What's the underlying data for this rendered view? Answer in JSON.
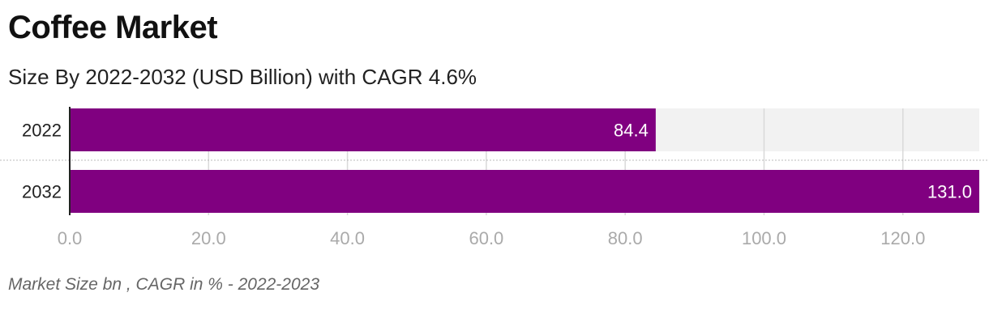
{
  "header": {
    "title": "Coffee Market",
    "subtitle": "Size By 2022-2032 (USD Billion) with CAGR 4.6%"
  },
  "footer": {
    "caption": "Market Size bn , CAGR in % - 2022-2023"
  },
  "colors": {
    "bar": "#800080",
    "track": "#f2f2f2",
    "grid": "#d9d9d9",
    "value_text": "#ffffff"
  },
  "chart_data": {
    "type": "bar",
    "orientation": "horizontal",
    "categories": [
      "2022",
      "2032"
    ],
    "values": [
      84.4,
      131.0
    ],
    "value_labels": [
      "84.4",
      "131.0"
    ],
    "title": "Coffee Market",
    "subtitle": "Size By 2022-2032 (USD Billion) with CAGR 4.6%",
    "xlim": [
      0,
      131
    ],
    "xticks": [
      0,
      20,
      40,
      60,
      80,
      100,
      120
    ],
    "xtick_labels": [
      "0.0",
      "20.0",
      "40.0",
      "60.0",
      "80.0",
      "100.0",
      "120.0"
    ],
    "grid": true,
    "legend": "none"
  }
}
